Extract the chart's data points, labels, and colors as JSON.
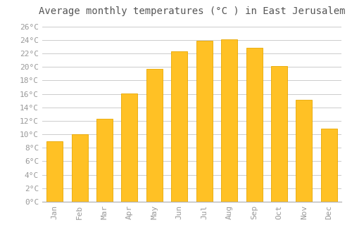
{
  "title": "Average monthly temperatures (°C ) in East Jerusalem",
  "months": [
    "Jan",
    "Feb",
    "Mar",
    "Apr",
    "May",
    "Jun",
    "Jul",
    "Aug",
    "Sep",
    "Oct",
    "Nov",
    "Dec"
  ],
  "values": [
    9,
    10,
    12.3,
    16.1,
    19.7,
    22.3,
    23.9,
    24.1,
    22.8,
    20.1,
    15.1,
    10.8
  ],
  "bar_color": "#FFC125",
  "bar_edge_color": "#E8A800",
  "background_color": "#FFFFFF",
  "grid_color": "#CCCCCC",
  "title_fontsize": 10,
  "tick_fontsize": 8,
  "tick_color": "#999999",
  "title_color": "#555555",
  "ylim": [
    0,
    27
  ],
  "yticks": [
    0,
    2,
    4,
    6,
    8,
    10,
    12,
    14,
    16,
    18,
    20,
    22,
    24,
    26
  ]
}
